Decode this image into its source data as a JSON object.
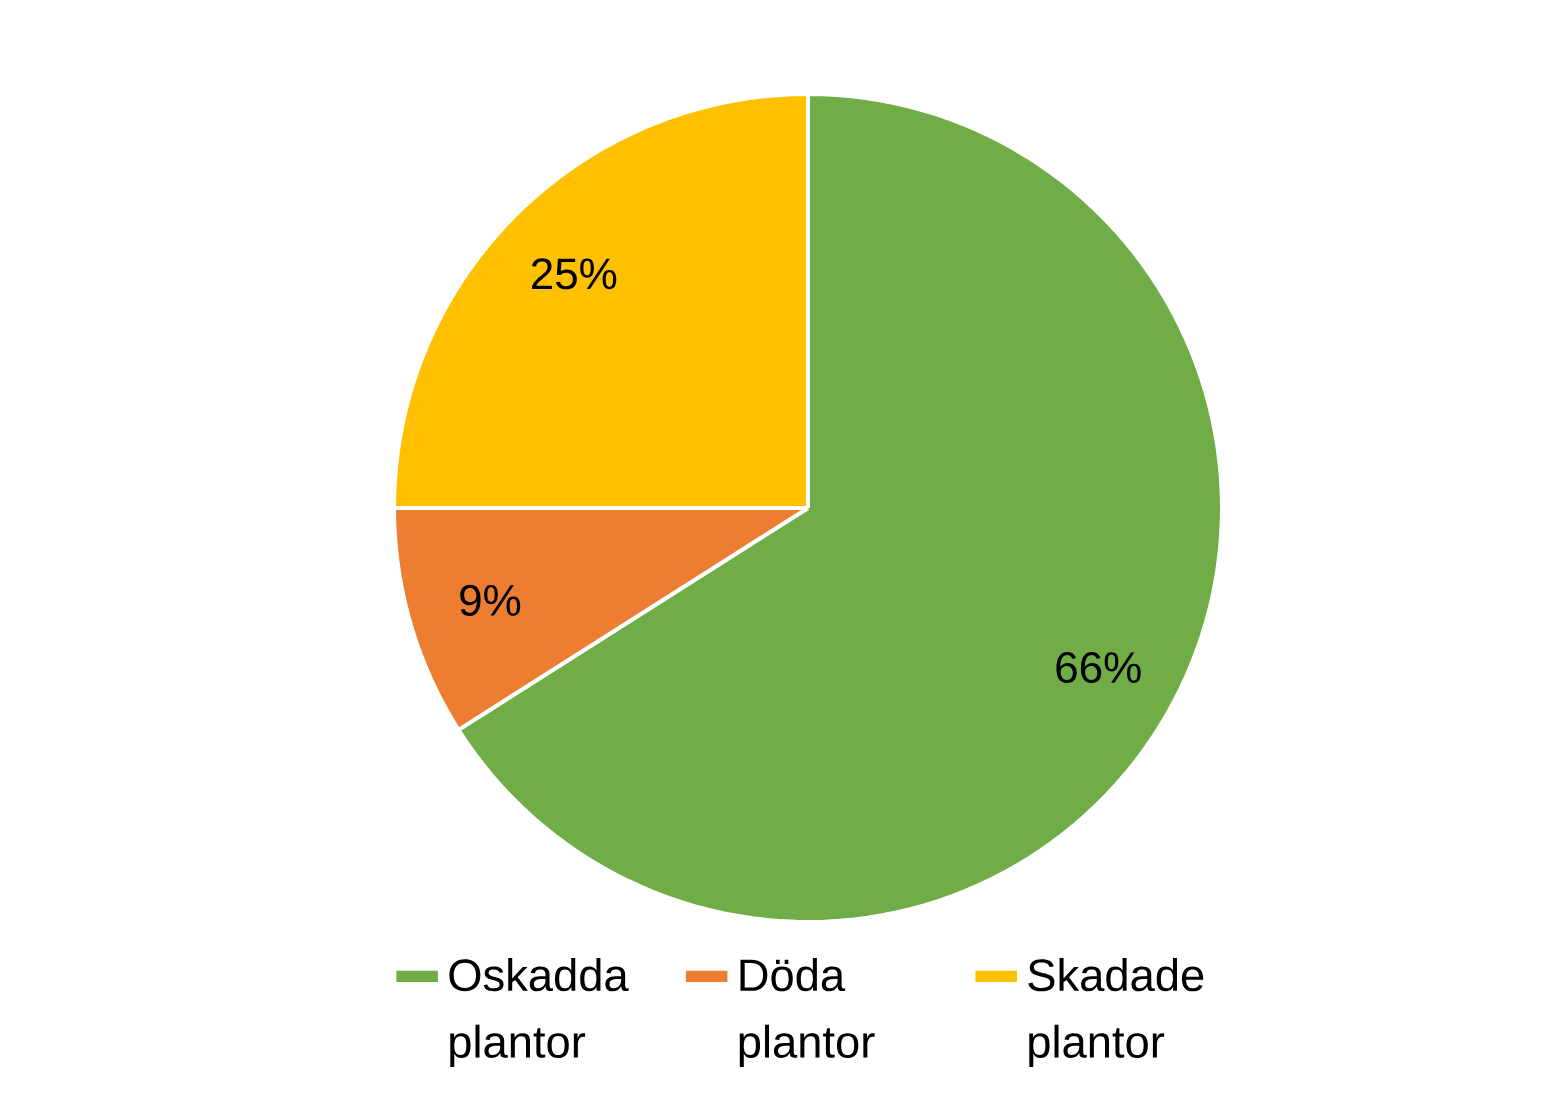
{
  "chart_data": {
    "type": "pie",
    "categories": [
      "Oskadda plantor",
      "Döda plantor",
      "Skadade plantor"
    ],
    "values": [
      66,
      9,
      25
    ],
    "colors": [
      "#70ad47",
      "#ed7d31",
      "#ffc000"
    ],
    "value_labels": [
      "66%",
      "9%",
      "25%"
    ],
    "legend": "bottom"
  }
}
